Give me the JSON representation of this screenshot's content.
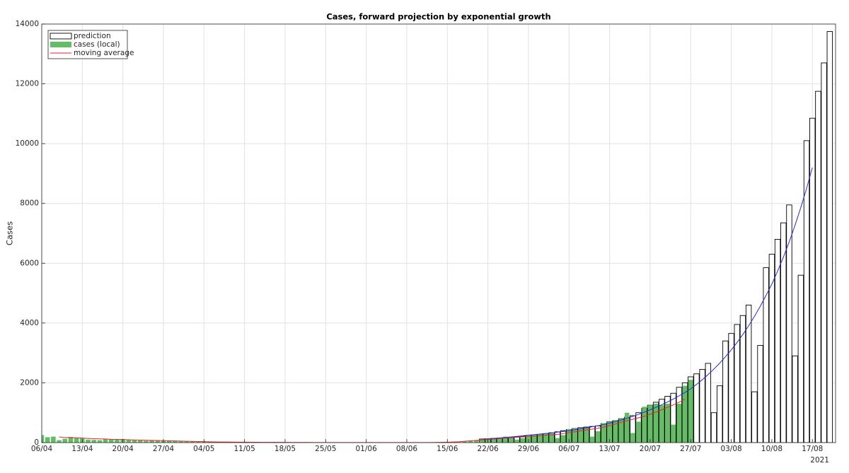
{
  "chart_data": {
    "type": "bar",
    "title": "Cases, forward projection by exponential growth",
    "ylabel": "Cases",
    "year_label": "2021",
    "categories": [
      "06/04",
      null,
      null,
      null,
      null,
      null,
      null,
      "13/04",
      null,
      null,
      null,
      null,
      null,
      null,
      "20/04",
      null,
      null,
      null,
      null,
      null,
      null,
      "27/04",
      null,
      null,
      null,
      null,
      null,
      null,
      "04/05",
      null,
      null,
      null,
      null,
      null,
      null,
      "11/05",
      null,
      null,
      null,
      null,
      null,
      null,
      "18/05",
      null,
      null,
      null,
      null,
      null,
      null,
      "25/05",
      null,
      null,
      null,
      null,
      null,
      null,
      "01/06",
      null,
      null,
      null,
      null,
      null,
      null,
      "08/06",
      null,
      null,
      null,
      null,
      null,
      null,
      "15/06",
      null,
      null,
      null,
      null,
      null,
      null,
      "22/06",
      null,
      null,
      null,
      null,
      null,
      null,
      "29/06",
      null,
      null,
      null,
      null,
      null,
      null,
      "06/07",
      null,
      null,
      null,
      null,
      null,
      null,
      "13/07",
      null,
      null,
      null,
      null,
      null,
      null,
      "20/07",
      null,
      null,
      null,
      null,
      null,
      null,
      "27/07",
      null,
      null,
      null,
      null,
      null,
      null,
      "03/08",
      null,
      null,
      null,
      null,
      null,
      null,
      "10/08",
      null,
      null,
      null,
      null,
      null,
      null,
      "17/08",
      null,
      null,
      null
    ],
    "ylim": [
      0,
      14000
    ],
    "yticks": [
      0,
      2000,
      4000,
      6000,
      8000,
      10000,
      12000,
      14000
    ],
    "grid": true,
    "legend": "upper left",
    "series": [
      {
        "name": "prediction",
        "mark": "bar",
        "color": "#ffffff",
        "edge_color": "#000000",
        "values": [
          null,
          null,
          null,
          null,
          null,
          null,
          null,
          null,
          null,
          null,
          null,
          null,
          null,
          null,
          null,
          null,
          null,
          null,
          null,
          null,
          null,
          null,
          null,
          null,
          null,
          null,
          null,
          null,
          null,
          null,
          null,
          null,
          null,
          null,
          null,
          null,
          null,
          null,
          null,
          null,
          null,
          null,
          null,
          null,
          null,
          null,
          null,
          null,
          null,
          null,
          null,
          null,
          null,
          null,
          null,
          null,
          null,
          null,
          null,
          null,
          null,
          null,
          null,
          null,
          null,
          null,
          null,
          null,
          null,
          null,
          null,
          null,
          null,
          null,
          null,
          null,
          120,
          130,
          140,
          150,
          165,
          180,
          195,
          215,
          235,
          255,
          275,
          300,
          330,
          360,
          400,
          440,
          470,
          500,
          520,
          540,
          560,
          640,
          700,
          740,
          800,
          850,
          900,
          1000,
          1150,
          1250,
          1350,
          1450,
          1550,
          1650,
          1850,
          2000,
          2200,
          2300,
          2450,
          2650,
          1000,
          1900,
          3400,
          3650,
          3950,
          4250,
          4600,
          1700,
          3250,
          5850,
          6300,
          6800,
          7350,
          7950,
          2900,
          5600,
          10100,
          10850,
          11750,
          12700,
          13750
        ]
      },
      {
        "name": "cases (local)",
        "mark": "bar",
        "color": "#63be63",
        "values": [
          250,
          180,
          200,
          80,
          130,
          190,
          160,
          150,
          100,
          90,
          80,
          120,
          110,
          100,
          120,
          90,
          80,
          70,
          60,
          80,
          70,
          60,
          70,
          50,
          40,
          50,
          40,
          30,
          35,
          30,
          25,
          20,
          20,
          15,
          20,
          15,
          10,
          12,
          10,
          8,
          15,
          10,
          8,
          5,
          10,
          8,
          5,
          5,
          3,
          3,
          2,
          2,
          3,
          2,
          1,
          2,
          1,
          2,
          1,
          2,
          1,
          2,
          1,
          2,
          2,
          3,
          2,
          3,
          5,
          6,
          8,
          10,
          20,
          40,
          60,
          80,
          100,
          130,
          120,
          150,
          200,
          170,
          100,
          150,
          260,
          270,
          280,
          300,
          310,
          150,
          250,
          450,
          470,
          480,
          500,
          200,
          380,
          650,
          700,
          750,
          800,
          1000,
          320,
          700,
          1200,
          1250,
          1300,
          1250,
          1300,
          600,
          1300,
          1900,
          2100,
          null,
          null,
          null,
          null,
          null,
          null,
          null,
          null,
          null,
          null,
          null,
          null,
          null,
          null,
          null,
          null,
          null,
          null,
          null,
          null,
          null,
          null,
          null,
          null
        ]
      },
      {
        "name": "moving average",
        "mark": "line",
        "color": "#e3262e",
        "values": [
          null,
          null,
          null,
          190,
          170,
          165,
          160,
          150,
          140,
          130,
          125,
          120,
          110,
          105,
          100,
          95,
          90,
          85,
          80,
          75,
          70,
          65,
          60,
          55,
          50,
          45,
          40,
          36,
          32,
          28,
          25,
          22,
          20,
          18,
          16,
          14,
          12,
          11,
          10,
          10,
          10,
          9,
          8,
          7,
          6,
          5,
          5,
          4,
          3,
          3,
          2,
          2,
          2,
          2,
          2,
          2,
          2,
          2,
          2,
          2,
          2,
          2,
          2,
          2,
          2,
          2,
          3,
          4,
          6,
          9,
          13,
          20,
          30,
          45,
          60,
          75,
          90,
          105,
          120,
          135,
          150,
          165,
          180,
          190,
          200,
          215,
          230,
          245,
          260,
          275,
          300,
          330,
          360,
          390,
          420,
          450,
          480,
          520,
          570,
          620,
          680,
          730,
          780,
          830,
          880,
          950,
          1020,
          1100,
          1180,
          1260,
          1350,
          1450,
          null,
          null,
          null,
          null,
          null,
          null,
          null,
          null,
          null,
          null,
          null,
          null,
          null,
          null,
          null,
          null,
          null,
          null,
          null,
          null,
          null,
          null,
          null,
          null,
          null
        ]
      },
      {
        "mark": "line",
        "color": "#2a2ae0",
        "values": [
          null,
          null,
          null,
          null,
          null,
          null,
          null,
          null,
          null,
          null,
          null,
          null,
          null,
          null,
          null,
          null,
          null,
          null,
          null,
          null,
          null,
          null,
          null,
          null,
          null,
          null,
          null,
          null,
          null,
          null,
          null,
          null,
          null,
          null,
          null,
          null,
          null,
          null,
          null,
          null,
          null,
          null,
          null,
          null,
          null,
          null,
          null,
          null,
          null,
          null,
          null,
          null,
          null,
          null,
          null,
          null,
          null,
          null,
          null,
          null,
          null,
          null,
          null,
          null,
          null,
          null,
          null,
          null,
          null,
          null,
          null,
          null,
          null,
          null,
          null,
          null,
          null,
          130,
          143,
          157,
          172,
          189,
          208,
          228,
          250,
          267,
          286,
          305,
          326,
          349,
          373,
          400,
          429,
          460,
          493,
          528,
          566,
          607,
          650,
          701,
          755,
          814,
          877,
          945,
          1019,
          1100,
          1180,
          1266,
          1358,
          1457,
          1564,
          1678,
          1800,
          1946,
          2104,
          2274,
          2458,
          2657,
          2872,
          3100,
          3349,
          3617,
          3907,
          4220,
          4558,
          4923,
          5300,
          5735,
          6205,
          6714,
          7265,
          7861,
          8505,
          9200,
          null,
          null,
          null
        ]
      }
    ]
  }
}
